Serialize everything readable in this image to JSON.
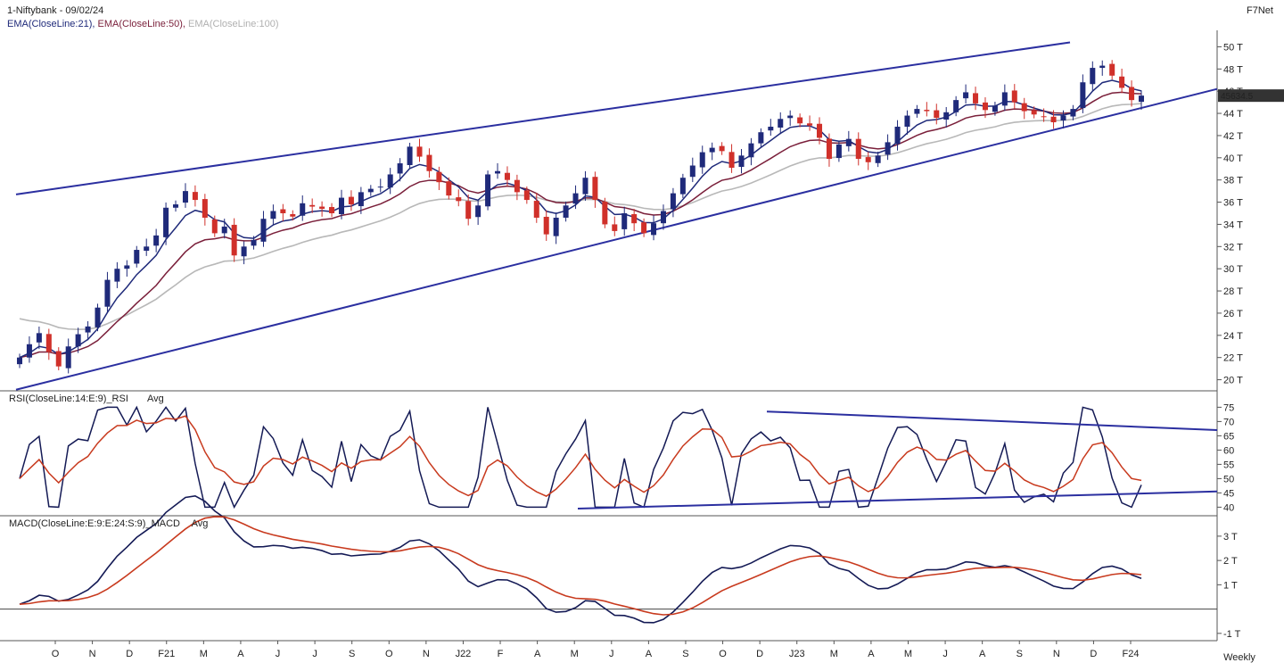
{
  "header": {
    "symbol": "1-Niftybank - 09/02/24",
    "source": "F7Net",
    "ema21": "EMA(CloseLine:21),",
    "ema50": "EMA(CloseLine:50),",
    "ema100": "EMA(CloseLine:100)",
    "price_tag": "45634.5"
  },
  "colors": {
    "up": "#1f2a7a",
    "down": "#d0302a",
    "ema21": "#1f2a7a",
    "ema50": "#7a1f3a",
    "ema100": "#b8b8b8",
    "trend": "#2b2fa0",
    "rsi": "#141a55",
    "avg": "#c83a1e"
  },
  "chart_data": [
    {
      "type": "candlestick",
      "title": "1-Niftybank - 09/02/24",
      "unit": "T",
      "timeframe": "Weekly",
      "ylim": [
        19,
        51
      ],
      "yticks": [
        "20 T",
        "22 T",
        "24 T",
        "26 T",
        "28 T",
        "30 T",
        "32 T",
        "34 T",
        "36 T",
        "38 T",
        "40 T",
        "42 T",
        "44 T",
        "46 T",
        "48 T",
        "50 T"
      ],
      "ytick_values": [
        20,
        22,
        24,
        26,
        28,
        30,
        32,
        34,
        36,
        38,
        40,
        42,
        44,
        46,
        48,
        50
      ],
      "x_labels": [
        "O",
        "N",
        "D",
        "F21",
        "M",
        "A",
        "J",
        "J",
        "S",
        "O",
        "N",
        "J22",
        "F",
        "A",
        "M",
        "J",
        "A",
        "S",
        "O",
        "D",
        "J23",
        "M",
        "A",
        "M",
        "J",
        "A",
        "S",
        "N",
        "D",
        "F24"
      ],
      "close": [
        22,
        23.2,
        24.2,
        22.5,
        21.2,
        23,
        24.1,
        24.8,
        26.5,
        29,
        30,
        30.3,
        31.7,
        32,
        33,
        35.5,
        35.8,
        37,
        36.2,
        34.6,
        33.2,
        33.8,
        31.2,
        32,
        32.6,
        34.5,
        35.2,
        35,
        34.7,
        35.9,
        35.6,
        35.4,
        35,
        36.4,
        35.8,
        36.9,
        37.2,
        37.4,
        38.5,
        39.5,
        41,
        40.1,
        38.8,
        37.8,
        36.6,
        36.1,
        34.5,
        35.7,
        38.5,
        38.8,
        38,
        36.9,
        36.2,
        34.6,
        33.1,
        34.6,
        35.7,
        36.8,
        38.2,
        36.2,
        34,
        33.4,
        35,
        34.1,
        33.2,
        34.1,
        35.2,
        36.8,
        38.2,
        39.3,
        40.5,
        40.9,
        40.6,
        39.1,
        40.2,
        41.3,
        42.3,
        42.8,
        43.5,
        43.8,
        43.1,
        42.9,
        41.8,
        39.9,
        41.2,
        41.7,
        39.9,
        39.6,
        40.2,
        41.4,
        42.8,
        43.8,
        44.4,
        44.2,
        43.6,
        44.1,
        45.2,
        45.9,
        44.9,
        44.3,
        44.7,
        45.9,
        45,
        44.2,
        43.9,
        43.7,
        43.2,
        43.8,
        44.4,
        46.8,
        48.1,
        48.3,
        47.4,
        46.3,
        45.2,
        45.6
      ],
      "ema21": "overlay line",
      "ema50": "overlay line",
      "ema100": "overlay line"
    },
    {
      "type": "line",
      "title": "RSI(CloseLine:14:E:9)_RSI Avg",
      "label_main": "RSI(CloseLine:14:E:9)_RSI",
      "label_avg": "Avg",
      "ylim": [
        37,
        77
      ],
      "yticks": [
        "40",
        "45",
        "50",
        "55",
        "60",
        "65",
        "70",
        "75"
      ],
      "ytick_values": [
        40,
        45,
        50,
        55,
        60,
        65,
        70,
        75
      ]
    },
    {
      "type": "line",
      "title": "MACD(CloseLine:E:9:E:24:S:9)_MACD Avg",
      "label_main": "MACD(CloseLine:E:9:E:24:S:9)_MACD",
      "label_avg": "Avg",
      "ylim": [
        -1.3,
        3.4
      ],
      "yticks": [
        "-1 T",
        "1 T",
        "2 T",
        "3 T"
      ],
      "ytick_values": [
        -1,
        1,
        2,
        3
      ]
    }
  ],
  "footer": {
    "timeframe": "Weekly"
  }
}
